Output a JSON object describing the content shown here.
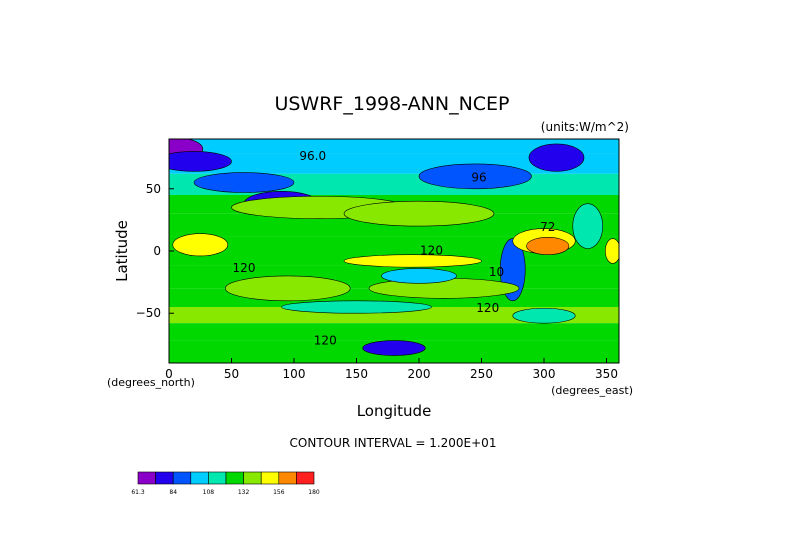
{
  "chart_data": {
    "type": "heatmap",
    "title": "USWRF_1998-ANN_NCEP",
    "units": "(units:W/m^2)",
    "xlabel": "Longitude",
    "ylabel": "Latitude",
    "x_note": "(degrees_east)",
    "y_note": "(degrees_north)",
    "xlim": [
      0,
      360
    ],
    "ylim": [
      -90,
      90
    ],
    "x_ticks": [
      {
        "value": 0,
        "label": "0"
      },
      {
        "value": 50,
        "label": "50"
      },
      {
        "value": 100,
        "label": "100"
      },
      {
        "value": 150,
        "label": "150"
      },
      {
        "value": 200,
        "label": "200"
      },
      {
        "value": 250,
        "label": "250"
      },
      {
        "value": 300,
        "label": "300"
      },
      {
        "value": 350,
        "label": "350"
      }
    ],
    "y_ticks": [
      {
        "value": 50,
        "label": "50"
      },
      {
        "value": 0,
        "label": "0"
      },
      {
        "value": -50,
        "label": "−50"
      }
    ],
    "contour_interval_text": "CONTOUR INTERVAL = 1.200E+01",
    "contour_labels": [
      {
        "text": "96.0",
        "lon": 115,
        "lat": 73
      },
      {
        "text": "96",
        "lon": 248,
        "lat": 56
      },
      {
        "text": "120",
        "lon": 60,
        "lat": -17
      },
      {
        "text": "120",
        "lon": 210,
        "lat": -3
      },
      {
        "text": "120",
        "lon": 255,
        "lat": -49
      },
      {
        "text": "120",
        "lon": 125,
        "lat": -75
      },
      {
        "text": "10",
        "lon": 262,
        "lat": -20
      },
      {
        "text": "72",
        "lon": 303,
        "lat": 16
      }
    ],
    "colorbar": {
      "colors": [
        "#8a00c8",
        "#2200ee",
        "#0055ff",
        "#00ccff",
        "#00e8b0",
        "#00d800",
        "#88e800",
        "#ffff00",
        "#ff8800",
        "#ff2020"
      ],
      "labels": [
        "61.3",
        "84",
        "108",
        "132",
        "156",
        "180"
      ]
    },
    "bands": [
      {
        "lat": [
          78,
          90
        ],
        "level": 3
      },
      {
        "lat": [
          62,
          78
        ],
        "level": 3
      },
      {
        "lat": [
          45,
          62
        ],
        "level": 4
      },
      {
        "lat": [
          30,
          45
        ],
        "level": 5
      },
      {
        "lat": [
          12,
          30
        ],
        "level": 5
      },
      {
        "lat": [
          -12,
          12
        ],
        "level": 5
      },
      {
        "lat": [
          -30,
          -12
        ],
        "level": 5
      },
      {
        "lat": [
          -45,
          -30
        ],
        "level": 5
      },
      {
        "lat": [
          -58,
          -45
        ],
        "level": 6
      },
      {
        "lat": [
          -72,
          -58
        ],
        "level": 5
      },
      {
        "lat": [
          -90,
          -72
        ],
        "level": 5
      }
    ],
    "features": [
      {
        "lon": 5,
        "lat": 82,
        "rx": 22,
        "ry": 9,
        "level": 0
      },
      {
        "lon": 20,
        "lat": 72,
        "rx": 30,
        "ry": 8,
        "level": 1
      },
      {
        "lon": 310,
        "lat": 75,
        "rx": 22,
        "ry": 11,
        "level": 1
      },
      {
        "lon": 90,
        "lat": 38,
        "rx": 30,
        "ry": 10,
        "level": 1
      },
      {
        "lon": 245,
        "lat": 60,
        "rx": 45,
        "ry": 10,
        "level": 2
      },
      {
        "lon": 60,
        "lat": 55,
        "rx": 40,
        "ry": 8,
        "level": 2
      },
      {
        "lon": 275,
        "lat": -15,
        "rx": 10,
        "ry": 25,
        "level": 2
      },
      {
        "lon": 180,
        "lat": -78,
        "rx": 25,
        "ry": 6,
        "level": 1
      },
      {
        "lon": 120,
        "lat": 35,
        "rx": 70,
        "ry": 9,
        "level": 6
      },
      {
        "lon": 200,
        "lat": 30,
        "rx": 60,
        "ry": 10,
        "level": 6
      },
      {
        "lon": 25,
        "lat": 5,
        "rx": 22,
        "ry": 9,
        "level": 7
      },
      {
        "lon": 195,
        "lat": -8,
        "rx": 55,
        "ry": 5,
        "level": 7
      },
      {
        "lon": 95,
        "lat": -30,
        "rx": 50,
        "ry": 10,
        "level": 6
      },
      {
        "lon": 220,
        "lat": -30,
        "rx": 60,
        "ry": 8,
        "level": 6
      },
      {
        "lon": 300,
        "lat": 8,
        "rx": 25,
        "ry": 10,
        "level": 7
      },
      {
        "lon": 303,
        "lat": 4,
        "rx": 17,
        "ry": 7,
        "level": 8
      },
      {
        "lon": 150,
        "lat": -45,
        "rx": 60,
        "ry": 5,
        "level": 4
      },
      {
        "lon": 200,
        "lat": -20,
        "rx": 30,
        "ry": 6,
        "level": 3
      },
      {
        "lon": 335,
        "lat": 20,
        "rx": 12,
        "ry": 18,
        "level": 4
      },
      {
        "lon": 355,
        "lat": 0,
        "rx": 6,
        "ry": 10,
        "level": 7
      },
      {
        "lon": 300,
        "lat": -52,
        "rx": 25,
        "ry": 6,
        "level": 4
      }
    ]
  }
}
